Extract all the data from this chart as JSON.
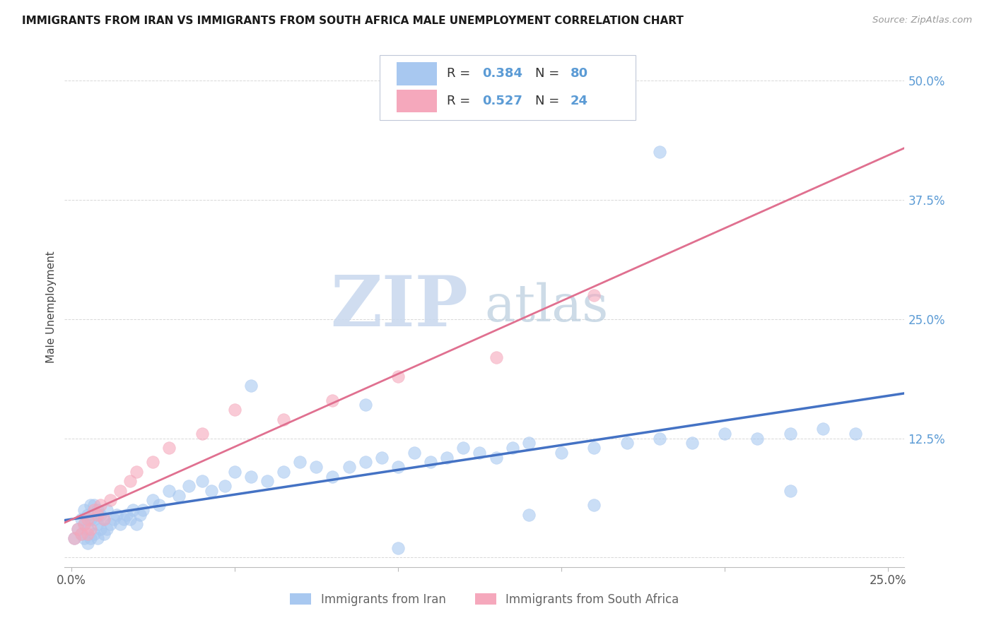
{
  "title": "IMMIGRANTS FROM IRAN VS IMMIGRANTS FROM SOUTH AFRICA MALE UNEMPLOYMENT CORRELATION CHART",
  "source": "Source: ZipAtlas.com",
  "ylabel": "Male Unemployment",
  "xlim": [
    -0.002,
    0.255
  ],
  "ylim": [
    -0.01,
    0.535
  ],
  "iran_color": "#a8c8f0",
  "south_africa_color": "#f5a8bc",
  "iran_line_color": "#4472c4",
  "sa_line_color": "#e07090",
  "sa_dash_color": "#e8b0b8",
  "iran_R": "0.384",
  "iran_N": "80",
  "south_africa_R": "0.527",
  "south_africa_N": "24",
  "watermark_zip": "ZIP",
  "watermark_atlas": "atlas",
  "watermark_color_zip": "#c8d8ee",
  "watermark_color_atlas": "#b8c8e0",
  "grid_color": "#d8d8d8",
  "background_color": "#ffffff",
  "title_fontsize": 11,
  "tick_color": "#5b9bd5",
  "tick_fontsize": 12,
  "legend_value_color": "#5b9bd5",
  "legend_label_color": "#333333",
  "ytick_values": [
    0.0,
    0.125,
    0.25,
    0.375,
    0.5
  ],
  "ytick_labels": [
    "",
    "12.5%",
    "25.0%",
    "37.5%",
    "50.0%"
  ],
  "iran_x": [
    0.001,
    0.002,
    0.003,
    0.003,
    0.004,
    0.004,
    0.004,
    0.005,
    0.005,
    0.005,
    0.006,
    0.006,
    0.006,
    0.007,
    0.007,
    0.007,
    0.008,
    0.008,
    0.008,
    0.009,
    0.009,
    0.01,
    0.01,
    0.011,
    0.011,
    0.012,
    0.013,
    0.014,
    0.015,
    0.016,
    0.017,
    0.018,
    0.019,
    0.02,
    0.021,
    0.022,
    0.025,
    0.027,
    0.03,
    0.033,
    0.036,
    0.04,
    0.043,
    0.047,
    0.05,
    0.055,
    0.06,
    0.065,
    0.07,
    0.075,
    0.08,
    0.085,
    0.09,
    0.095,
    0.1,
    0.105,
    0.11,
    0.115,
    0.12,
    0.125,
    0.13,
    0.135,
    0.14,
    0.15,
    0.16,
    0.17,
    0.18,
    0.19,
    0.2,
    0.21,
    0.22,
    0.23,
    0.24,
    0.055,
    0.09,
    0.1,
    0.14,
    0.16,
    0.18,
    0.22
  ],
  "iran_y": [
    0.02,
    0.03,
    0.025,
    0.04,
    0.02,
    0.035,
    0.05,
    0.015,
    0.03,
    0.045,
    0.02,
    0.04,
    0.055,
    0.025,
    0.04,
    0.055,
    0.02,
    0.035,
    0.05,
    0.03,
    0.045,
    0.025,
    0.04,
    0.03,
    0.05,
    0.035,
    0.04,
    0.045,
    0.035,
    0.04,
    0.045,
    0.04,
    0.05,
    0.035,
    0.045,
    0.05,
    0.06,
    0.055,
    0.07,
    0.065,
    0.075,
    0.08,
    0.07,
    0.075,
    0.09,
    0.085,
    0.08,
    0.09,
    0.1,
    0.095,
    0.085,
    0.095,
    0.1,
    0.105,
    0.095,
    0.11,
    0.1,
    0.105,
    0.115,
    0.11,
    0.105,
    0.115,
    0.12,
    0.11,
    0.115,
    0.12,
    0.125,
    0.12,
    0.13,
    0.125,
    0.13,
    0.135,
    0.13,
    0.18,
    0.16,
    0.01,
    0.045,
    0.055,
    0.425,
    0.07
  ],
  "sa_x": [
    0.001,
    0.002,
    0.003,
    0.004,
    0.005,
    0.005,
    0.006,
    0.007,
    0.008,
    0.009,
    0.01,
    0.012,
    0.015,
    0.018,
    0.02,
    0.025,
    0.03,
    0.04,
    0.05,
    0.065,
    0.08,
    0.1,
    0.13,
    0.16
  ],
  "sa_y": [
    0.02,
    0.03,
    0.025,
    0.035,
    0.025,
    0.04,
    0.03,
    0.05,
    0.045,
    0.055,
    0.04,
    0.06,
    0.07,
    0.08,
    0.09,
    0.1,
    0.115,
    0.13,
    0.155,
    0.145,
    0.165,
    0.19,
    0.21,
    0.275
  ]
}
